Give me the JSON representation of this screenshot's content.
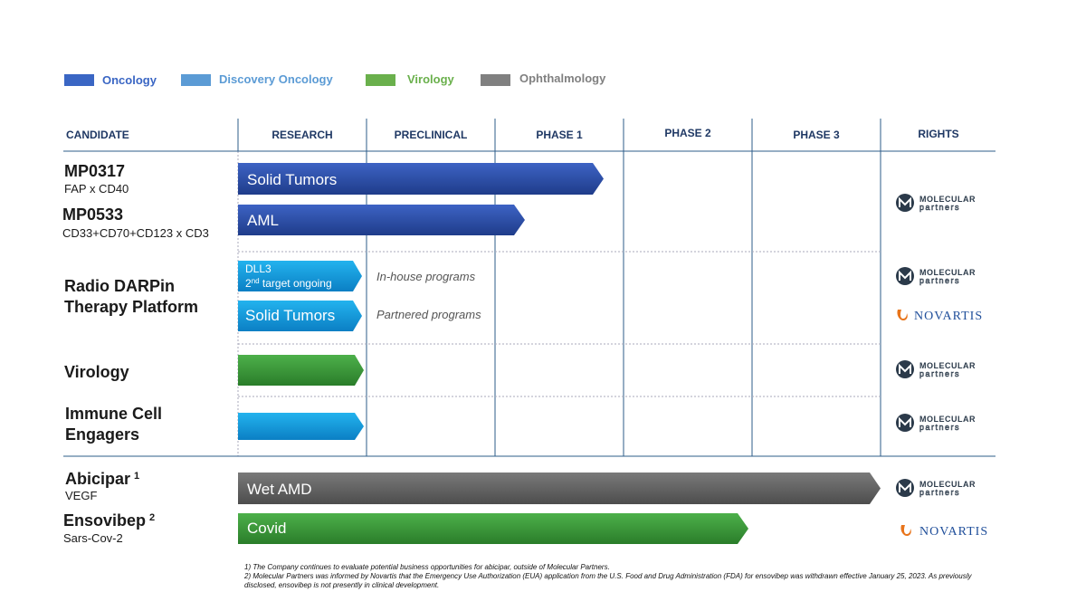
{
  "legend": {
    "oncology": "Oncology",
    "discovery": "Discovery Oncology",
    "virology": "Virology",
    "ophthalmology": "Ophthalmology"
  },
  "header": {
    "candidate": "CANDIDATE",
    "research": "RESEARCH",
    "preclinical": "PRECLINICAL",
    "phase1": "PHASE 1",
    "phase2": "PHASE 2",
    "phase3": "PHASE 3",
    "rights": "RIGHTS"
  },
  "rows": {
    "mp0317": {
      "name": "MP0317",
      "sub": "FAP x CD40",
      "bar": "Solid Tumors"
    },
    "mp0533": {
      "name": "MP0533",
      "sub": "CD33+CD70+CD123 x CD3",
      "bar": "AML"
    },
    "radio": {
      "name1": "Radio DARPin",
      "name2": "Therapy Platform",
      "bar1_line1": "DLL3",
      "bar1_num": "2",
      "bar1_sup": "nd",
      "bar1_rest": " target ongoing",
      "note1": "In-house programs",
      "bar2": "Solid Tumors",
      "note2": "Partnered programs"
    },
    "virology": {
      "name": "Virology"
    },
    "immune": {
      "name1": "Immune Cell",
      "name2": "Engagers"
    },
    "abicipar": {
      "name": "Abicipar",
      "sup": "1",
      "sub": "VEGF",
      "bar": "Wet AMD"
    },
    "ensovibep": {
      "name": "Ensovibep",
      "sup": "2",
      "sub": "Sars-Cov-2",
      "bar": "Covid"
    }
  },
  "logos": {
    "mp_line1": "MOLECULAR",
    "mp_line2": "partners",
    "novartis": "NOVARTIS"
  },
  "footnotes": [
    "1) The Company continues to evaluate potential business opportunities for abicipar, outside of Molecular Partners.",
    "2) Molecular Partners was informed by Novartis that the Emergency Use Authorization (EUA) application from the U.S. Food and Drug Administration (FDA) for ensovibep was withdrawn effective January 25, 2023. As previously disclosed, ensovibep is not presently in clinical development."
  ]
}
